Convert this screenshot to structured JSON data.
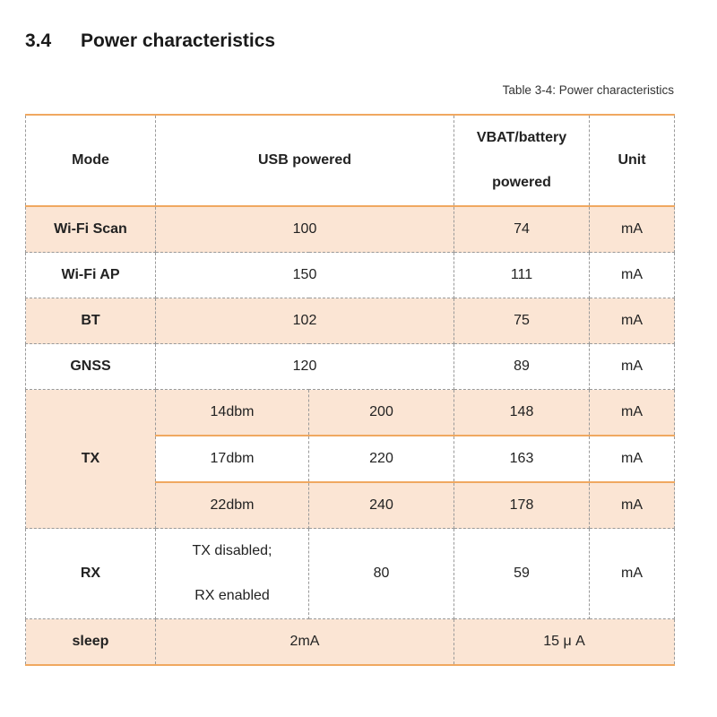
{
  "section": {
    "number": "3.4",
    "title": "Power characteristics"
  },
  "caption": "Table 3-4: Power characteristics",
  "header": {
    "mode": "Mode",
    "usb": "USB powered",
    "vbat_1": "VBAT/battery",
    "vbat_2": "powered",
    "unit": "Unit"
  },
  "rows": [
    {
      "mode": "Wi-Fi Scan",
      "usb": "100",
      "vbat": "74",
      "unit": "mA"
    },
    {
      "mode": "Wi-Fi AP",
      "usb": "150",
      "vbat": "111",
      "unit": "mA"
    },
    {
      "mode": "BT",
      "usb": "102",
      "vbat": "75",
      "unit": "mA"
    },
    {
      "mode": "GNSS",
      "usb": "120",
      "vbat": "89",
      "unit": "mA"
    }
  ],
  "tx": {
    "mode": "TX",
    "levels": [
      {
        "level": "14dbm",
        "usb": "200",
        "vbat": "148",
        "unit": "mA"
      },
      {
        "level": "17dbm",
        "usb": "220",
        "vbat": "163",
        "unit": "mA"
      },
      {
        "level": "22dbm",
        "usb": "240",
        "vbat": "178",
        "unit": "mA"
      }
    ]
  },
  "rx": {
    "mode": "RX",
    "cond_1": "TX disabled;",
    "cond_2": "RX enabled",
    "usb": "80",
    "vbat": "59",
    "unit": "mA"
  },
  "sleep": {
    "mode": "sleep",
    "usb": "2mA",
    "vbat": "15 μ A"
  },
  "colors": {
    "accent_line": "#f0a860",
    "shade": "#fbe5d4"
  }
}
